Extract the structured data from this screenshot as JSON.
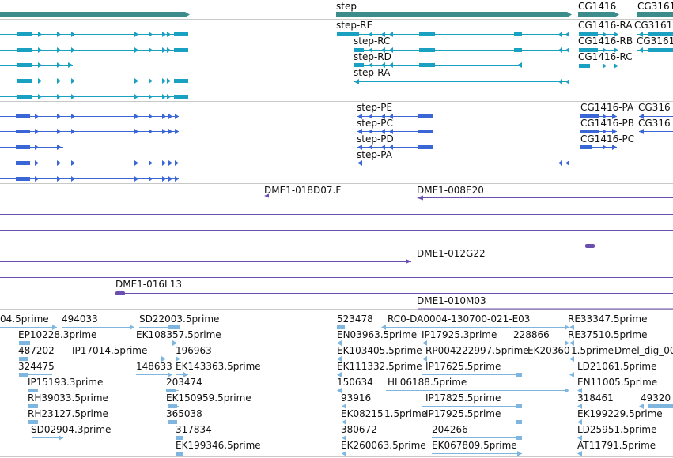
{
  "colors": {
    "gene": "#3c8c8c",
    "transcript": "#1aa0c0",
    "protein": "#3b66d6",
    "clone": "#6a4fae",
    "est": "#7fb6e0",
    "separator": "#c0c0c0"
  },
  "genes": [
    {
      "name": "",
      "label": ""
    },
    {
      "name": "step",
      "label": "step"
    },
    {
      "name": "CG1416",
      "label": "CG1416"
    },
    {
      "name": "CG3161",
      "label": "CG3161"
    }
  ],
  "transcripts": [
    {
      "label": "step-RE"
    },
    {
      "label": "step-RC"
    },
    {
      "label": "step-RD"
    },
    {
      "label": "step-RA"
    },
    {
      "label": "CG1416-RA"
    },
    {
      "label": "CG3161"
    },
    {
      "label": "CG1416-RB"
    },
    {
      "label": "CG3161"
    },
    {
      "label": "CG1416-RC"
    }
  ],
  "proteins": [
    {
      "label": "step-PE"
    },
    {
      "label": "step-PC"
    },
    {
      "label": "step-PD"
    },
    {
      "label": "step-PA"
    },
    {
      "label": "CG1416-PA"
    },
    {
      "label": "CG316"
    },
    {
      "label": "CG1416-PB"
    },
    {
      "label": "CG316"
    },
    {
      "label": "CG1416-PC"
    }
  ],
  "clones": [
    {
      "label": "DME1-018D07.F"
    },
    {
      "label": "DME1-008E20"
    },
    {
      "label": "DME1-012G22"
    },
    {
      "label": "DME1-016L13"
    },
    {
      "label": "DME1-010M03"
    }
  ],
  "ests": [
    {
      "label": "04.5prime"
    },
    {
      "label": "494033"
    },
    {
      "label": "SD22003.5prime"
    },
    {
      "label": "EP10228.3prime"
    },
    {
      "label": "EK108357.5prime"
    },
    {
      "label": "487202"
    },
    {
      "label": "IP17014.5prime"
    },
    {
      "label": "196963"
    },
    {
      "label": "324475"
    },
    {
      "label": "148633"
    },
    {
      "label": "EK143363.5prime"
    },
    {
      "label": "203474"
    },
    {
      "label": "IP15193.3prime"
    },
    {
      "label": "RH39033.5prime"
    },
    {
      "label": "EK150959.5prime"
    },
    {
      "label": "RH23127.5prime"
    },
    {
      "label": "365038"
    },
    {
      "label": "SD02904.3prime"
    },
    {
      "label": "317834"
    },
    {
      "label": "EK199346.5prime"
    },
    {
      "label": "523478"
    },
    {
      "label": "RC0-DA0004-130700-021-E03"
    },
    {
      "label": "EN03963.5prime"
    },
    {
      "label": "IP17925.3prime"
    },
    {
      "label": "228866"
    },
    {
      "label": "EK103405.5prime"
    },
    {
      "label": "RP004222997.5prime"
    },
    {
      "label": "EK20360"
    },
    {
      "label": "EK111332.5prime"
    },
    {
      "label": "IP17625.5prime"
    },
    {
      "label": "150634"
    },
    {
      "label": "HL06188.5prime"
    },
    {
      "label": "93916"
    },
    {
      "label": "IP17825.5prime"
    },
    {
      "label": "EK08215"
    },
    {
      "label": "1.5prime"
    },
    {
      "label": "IP17925.5prime"
    },
    {
      "label": "380672"
    },
    {
      "label": "204266"
    },
    {
      "label": "EK260063.5prime"
    },
    {
      "label": "EK067809.5prime"
    },
    {
      "label": "RE33347.5prime"
    },
    {
      "label": "RE37510.5prime"
    },
    {
      "label": "1.5prime"
    },
    {
      "label": "Dmel_dig_00"
    },
    {
      "label": "LD21061.5prime"
    },
    {
      "label": "EN11005.5prime"
    },
    {
      "label": "318461"
    },
    {
      "label": "49320"
    },
    {
      "label": "EK199229.5prime"
    },
    {
      "label": "LD25951.5prime"
    },
    {
      "label": "AT11791.5prime"
    }
  ]
}
